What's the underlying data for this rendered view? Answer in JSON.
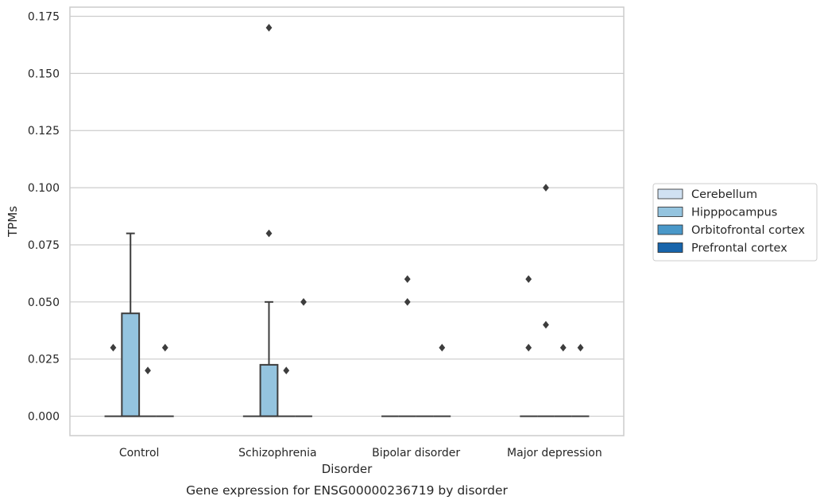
{
  "chart_data": {
    "type": "box",
    "title": "",
    "caption": "Gene expression for ENSG00000236719 by disorder",
    "xlabel": "Disorder",
    "ylabel": "TPMs",
    "ylim": [
      -0.0085,
      0.179
    ],
    "yticks": [
      0.0,
      0.025,
      0.05,
      0.075,
      0.1,
      0.125,
      0.15,
      0.175
    ],
    "ytick_labels": [
      "0.000",
      "0.025",
      "0.050",
      "0.075",
      "0.100",
      "0.125",
      "0.150",
      "0.175"
    ],
    "grid": "horizontal",
    "legend_position": "right",
    "categories": [
      "Control",
      "Schizophrenia",
      "Bipolar disorder",
      "Major depression"
    ],
    "series": [
      {
        "name": "Cerebellum",
        "color": "#d0e1f2",
        "boxes": [
          {
            "q1": 0,
            "median": 0,
            "q3": 0,
            "whisker_low": 0,
            "whisker_high": 0,
            "outliers": [
              0.03
            ]
          },
          {
            "q1": 0,
            "median": 0,
            "q3": 0,
            "whisker_low": 0,
            "whisker_high": 0,
            "outliers": []
          },
          {
            "q1": 0,
            "median": 0,
            "q3": 0,
            "whisker_low": 0,
            "whisker_high": 0,
            "outliers": []
          },
          {
            "q1": 0,
            "median": 0,
            "q3": 0,
            "whisker_low": 0,
            "whisker_high": 0,
            "outliers": [
              0.06,
              0.03
            ]
          }
        ]
      },
      {
        "name": "Hipppocampus",
        "color": "#94c4df",
        "boxes": [
          {
            "q1": 0,
            "median": 0,
            "q3": 0.045,
            "whisker_low": 0,
            "whisker_high": 0.08,
            "outliers": []
          },
          {
            "q1": 0,
            "median": 0,
            "q3": 0.0225,
            "whisker_low": 0,
            "whisker_high": 0.05,
            "outliers": [
              0.17,
              0.08
            ]
          },
          {
            "q1": 0,
            "median": 0,
            "q3": 0,
            "whisker_low": 0,
            "whisker_high": 0,
            "outliers": [
              0.06,
              0.05
            ]
          },
          {
            "q1": 0,
            "median": 0,
            "q3": 0,
            "whisker_low": 0,
            "whisker_high": 0,
            "outliers": [
              0.1,
              0.04
            ]
          }
        ]
      },
      {
        "name": "Orbitofrontal cortex",
        "color": "#4a98c9",
        "boxes": [
          {
            "q1": 0,
            "median": 0,
            "q3": 0,
            "whisker_low": 0,
            "whisker_high": 0,
            "outliers": [
              0.02
            ]
          },
          {
            "q1": 0,
            "median": 0,
            "q3": 0,
            "whisker_low": 0,
            "whisker_high": 0,
            "outliers": [
              0.02
            ]
          },
          {
            "q1": 0,
            "median": 0,
            "q3": 0,
            "whisker_low": 0,
            "whisker_high": 0,
            "outliers": []
          },
          {
            "q1": 0,
            "median": 0,
            "q3": 0,
            "whisker_low": 0,
            "whisker_high": 0,
            "outliers": [
              0.03
            ]
          }
        ]
      },
      {
        "name": "Prefrontal cortex",
        "color": "#1764ab",
        "boxes": [
          {
            "q1": 0,
            "median": 0,
            "q3": 0,
            "whisker_low": 0,
            "whisker_high": 0,
            "outliers": [
              0.03
            ]
          },
          {
            "q1": 0,
            "median": 0,
            "q3": 0,
            "whisker_low": 0,
            "whisker_high": 0,
            "outliers": [
              0.05
            ]
          },
          {
            "q1": 0,
            "median": 0,
            "q3": 0,
            "whisker_low": 0,
            "whisker_high": 0,
            "outliers": [
              0.03
            ]
          },
          {
            "q1": 0,
            "median": 0,
            "q3": 0,
            "whisker_low": 0,
            "whisker_high": 0,
            "outliers": [
              0.03
            ]
          }
        ]
      }
    ],
    "style": {
      "grid_color": "#cccccc",
      "frame_color": "#cccccc",
      "line_color": "#3d3d3d",
      "median_color": "#3d3d3d"
    }
  }
}
